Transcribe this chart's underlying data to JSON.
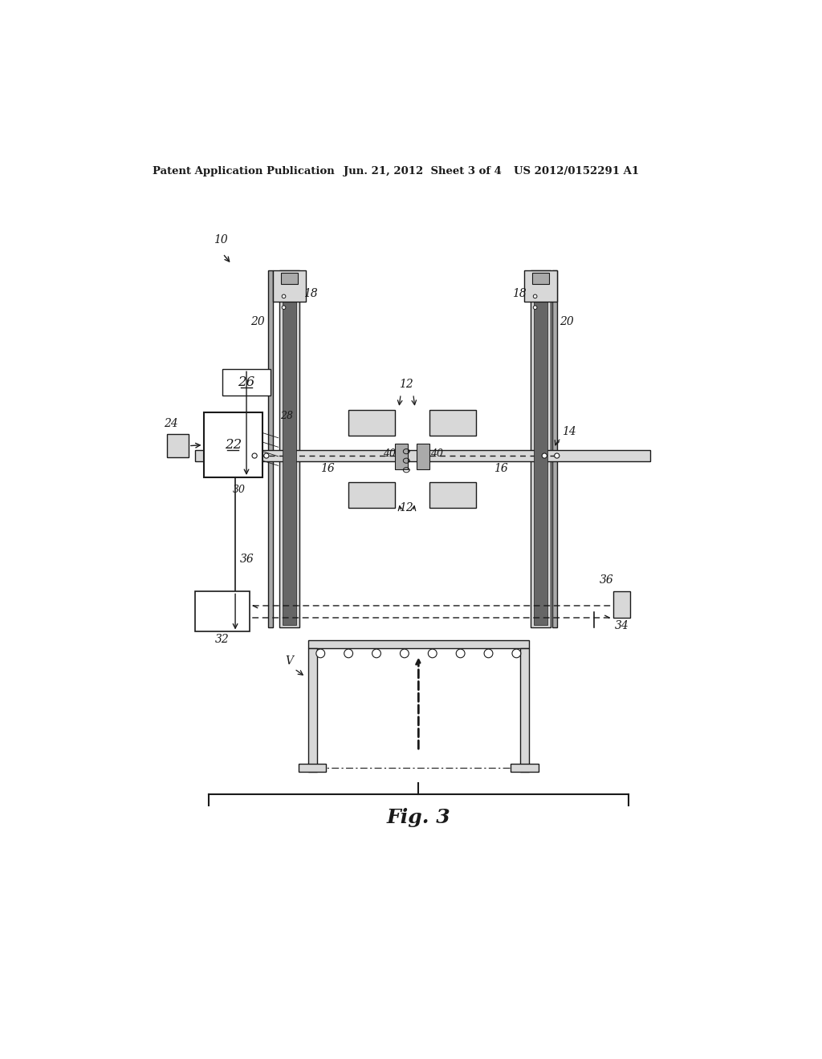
{
  "bg_color": "#ffffff",
  "header_left": "Patent Application Publication",
  "header_mid": "Jun. 21, 2012  Sheet 3 of 4",
  "header_right": "US 2012/0152291 A1",
  "fig_label": "Fig. 3",
  "dark": "#1a1a1a",
  "gray_light": "#d8d8d8",
  "gray_med": "#aaaaaa",
  "gray_dark": "#666666"
}
